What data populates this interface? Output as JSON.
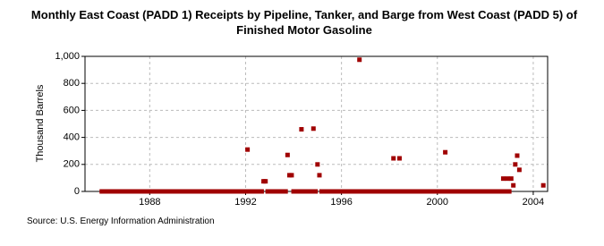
{
  "chart_data": {
    "type": "scatter",
    "title": "Monthly East Coast (PADD 1) Receipts by Pipeline, Tanker, and Barge from West Coast (PADD 5) of Finished Motor Gasoline",
    "y_label": "Thousand Barrels",
    "source": "Source: U.S. Energy Information Administration",
    "color": "#a00000",
    "grid": true,
    "xlim": [
      1985.3,
      2004.6
    ],
    "xticks": [
      1988,
      1992,
      1996,
      2000,
      2004
    ],
    "ylim": [
      0,
      1000
    ],
    "yticks": [
      0,
      200,
      400,
      600,
      800,
      {
        "value": 1000,
        "label": "1,000"
      }
    ],
    "x": [
      1986.0,
      1986.08,
      1986.17,
      1986.25,
      1986.33,
      1986.42,
      1986.5,
      1986.58,
      1986.67,
      1986.75,
      1986.83,
      1986.92,
      1987.0,
      1987.08,
      1987.17,
      1987.25,
      1987.33,
      1987.42,
      1987.5,
      1987.58,
      1987.67,
      1987.75,
      1987.83,
      1987.92,
      1988.0,
      1988.08,
      1988.17,
      1988.25,
      1988.33,
      1988.42,
      1988.5,
      1988.58,
      1988.67,
      1988.75,
      1988.83,
      1988.92,
      1989.0,
      1989.08,
      1989.17,
      1989.25,
      1989.33,
      1989.42,
      1989.5,
      1989.58,
      1989.67,
      1989.75,
      1989.83,
      1989.92,
      1990.0,
      1990.08,
      1990.17,
      1990.25,
      1990.33,
      1990.42,
      1990.5,
      1990.58,
      1990.67,
      1990.75,
      1990.83,
      1990.92,
      1991.0,
      1991.08,
      1991.17,
      1991.25,
      1991.33,
      1991.42,
      1991.5,
      1991.58,
      1991.67,
      1991.75,
      1991.83,
      1991.92,
      1992.0,
      1992.08,
      1992.17,
      1992.25,
      1992.33,
      1992.42,
      1992.5,
      1992.58,
      1992.67,
      1992.75,
      1992.83,
      1992.92,
      1993.0,
      1993.08,
      1993.17,
      1993.25,
      1993.33,
      1993.42,
      1993.5,
      1993.58,
      1993.67,
      1993.75,
      1993.83,
      1993.92,
      1994.0,
      1994.08,
      1994.17,
      1994.25,
      1994.33,
      1994.42,
      1994.5,
      1994.58,
      1994.67,
      1994.75,
      1994.83,
      1994.92,
      1995.0,
      1995.08,
      1995.17,
      1995.25,
      1995.33,
      1995.42,
      1995.5,
      1995.58,
      1995.67,
      1995.75,
      1995.83,
      1995.92,
      1996.0,
      1996.08,
      1996.17,
      1996.25,
      1996.33,
      1996.42,
      1996.5,
      1996.58,
      1996.67,
      1996.75,
      1996.83,
      1996.92,
      1997.0,
      1997.08,
      1997.17,
      1997.25,
      1997.33,
      1997.42,
      1997.5,
      1997.58,
      1997.67,
      1997.75,
      1997.83,
      1997.92,
      1998.0,
      1998.08,
      1998.17,
      1998.25,
      1998.33,
      1998.42,
      1998.5,
      1998.58,
      1998.67,
      1998.75,
      1998.83,
      1998.92,
      1999.0,
      1999.08,
      1999.17,
      1999.25,
      1999.33,
      1999.42,
      1999.5,
      1999.58,
      1999.67,
      1999.75,
      1999.83,
      1999.92,
      2000.0,
      2000.08,
      2000.17,
      2000.25,
      2000.33,
      2000.42,
      2000.5,
      2000.58,
      2000.67,
      2000.75,
      2000.83,
      2000.92,
      2001.0,
      2001.08,
      2001.17,
      2001.25,
      2001.33,
      2001.42,
      2001.5,
      2001.58,
      2001.67,
      2001.75,
      2001.83,
      2001.92,
      2002.0,
      2002.08,
      2002.17,
      2002.25,
      2002.33,
      2002.42,
      2002.5,
      2002.58,
      2002.67,
      2002.75,
      2002.83,
      2002.92,
      2003.0,
      2003.08,
      2003.17,
      2003.25,
      2003.33,
      2003.42,
      2004.42
    ],
    "values": [
      0,
      0,
      0,
      0,
      0,
      0,
      0,
      0,
      0,
      0,
      0,
      0,
      0,
      0,
      0,
      0,
      0,
      0,
      0,
      0,
      0,
      0,
      0,
      0,
      0,
      0,
      0,
      0,
      0,
      0,
      0,
      0,
      0,
      0,
      0,
      0,
      0,
      0,
      0,
      0,
      0,
      0,
      0,
      0,
      0,
      0,
      0,
      0,
      0,
      0,
      0,
      0,
      0,
      0,
      0,
      0,
      0,
      0,
      0,
      0,
      0,
      0,
      0,
      0,
      0,
      0,
      0,
      0,
      0,
      0,
      0,
      0,
      0,
      310,
      0,
      0,
      0,
      0,
      0,
      0,
      0,
      75,
      75,
      0,
      0,
      0,
      0,
      0,
      0,
      0,
      0,
      0,
      0,
      270,
      120,
      120,
      0,
      0,
      0,
      0,
      460,
      0,
      0,
      0,
      0,
      0,
      465,
      0,
      200,
      120,
      0,
      0,
      0,
      0,
      0,
      0,
      0,
      0,
      0,
      0,
      0,
      0,
      0,
      0,
      0,
      0,
      0,
      0,
      0,
      975,
      0,
      0,
      0,
      0,
      0,
      0,
      0,
      0,
      0,
      0,
      0,
      0,
      0,
      0,
      0,
      0,
      245,
      0,
      0,
      245,
      0,
      0,
      0,
      0,
      0,
      0,
      0,
      0,
      0,
      0,
      0,
      0,
      0,
      0,
      0,
      0,
      0,
      0,
      0,
      0,
      0,
      0,
      290,
      0,
      0,
      0,
      0,
      0,
      0,
      0,
      0,
      0,
      0,
      0,
      0,
      0,
      0,
      0,
      0,
      0,
      0,
      0,
      0,
      0,
      0,
      0,
      0,
      0,
      0,
      0,
      0,
      95,
      0,
      95,
      0,
      95,
      45,
      200,
      265,
      160,
      45
    ]
  }
}
